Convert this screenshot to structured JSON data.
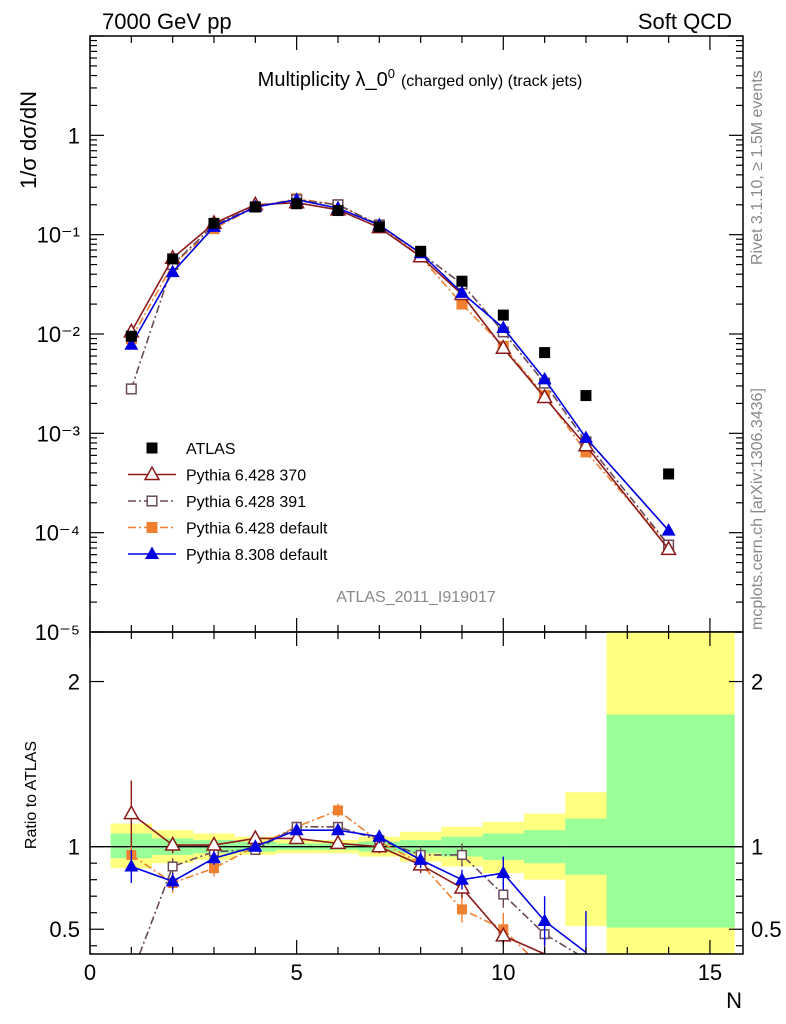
{
  "header": {
    "left": "7000 GeV pp",
    "right": "Soft QCD"
  },
  "side_labels": {
    "top": "Rivet 3.1.10, ≥ 1.5M events",
    "bottom": "mcplots.cern.ch [arXiv:1306.3436]"
  },
  "chart_data": [
    {
      "type": "line",
      "panel": "main",
      "title": "Multiplicity λ_0",
      "title_sup": "0",
      "title_suffix": "(charged only) (track jets)",
      "ylabel": "1/σ dσ/dN",
      "xlabel": "N",
      "watermark": "ATLAS_2011_I919017",
      "yscale": "log",
      "xlim": [
        0,
        15.8
      ],
      "ylim": [
        1e-05,
        10
      ],
      "y_ticks": [
        {
          "label": "1",
          "value": 1
        },
        {
          "label": "10⁻¹",
          "value": 0.1
        },
        {
          "label": "10⁻²",
          "value": 0.01
        },
        {
          "label": "10⁻³",
          "value": 0.001
        },
        {
          "label": "10⁻⁴",
          "value": 0.0001
        },
        {
          "label": "10⁻⁵",
          "value": 1e-05
        }
      ],
      "legend": "left-middle",
      "series": [
        {
          "name": "ATLAS",
          "color": "#000000",
          "marker": "square",
          "line": "none",
          "x": [
            1,
            2,
            3,
            4,
            5,
            6,
            7,
            8,
            9,
            10,
            11,
            12,
            14
          ],
          "y": [
            0.0095,
            0.057,
            0.13,
            0.19,
            0.205,
            0.175,
            0.12,
            0.068,
            0.034,
            0.0155,
            0.0065,
            0.0024,
            0.00039
          ]
        },
        {
          "name": "Pythia 6.428 370",
          "color": "#8b1a1a",
          "marker": "triangle-open",
          "line": "solid",
          "x": [
            1,
            2,
            3,
            4,
            5,
            6,
            7,
            8,
            9,
            10,
            11,
            12,
            14
          ],
          "y": [
            0.0105,
            0.058,
            0.13,
            0.2,
            0.21,
            0.178,
            0.118,
            0.06,
            0.025,
            0.0072,
            0.0023,
            0.00075,
            6.8e-05
          ]
        },
        {
          "name": "Pythia 6.428 391",
          "color": "#6b4a5a",
          "marker": "square-open",
          "line": "dashdot",
          "x": [
            1,
            2,
            3,
            4,
            5,
            6,
            7,
            8,
            9,
            10,
            11,
            12,
            14
          ],
          "y": [
            0.0028,
            0.05,
            0.125,
            0.19,
            0.225,
            0.2,
            0.125,
            0.065,
            0.032,
            0.0105,
            0.0032,
            0.00082,
            7.5e-05
          ]
        },
        {
          "name": "Pythia 6.428 default",
          "color": "#f08030",
          "marker": "square",
          "line": "dashdot",
          "x": [
            1,
            2,
            3,
            4,
            5,
            6,
            7,
            8,
            9,
            10,
            11,
            12,
            14
          ],
          "y": [
            0.009,
            0.05,
            0.115,
            0.19,
            0.23,
            0.2,
            0.125,
            0.06,
            0.02,
            0.0075,
            0.0024,
            0.00065,
            7.5e-05
          ]
        },
        {
          "name": "Pythia 8.308 default",
          "color": "#0000e0",
          "marker": "triangle",
          "line": "solid",
          "x": [
            1,
            2,
            3,
            4,
            5,
            6,
            7,
            8,
            9,
            10,
            11,
            12,
            14
          ],
          "y": [
            0.0078,
            0.042,
            0.12,
            0.19,
            0.225,
            0.185,
            0.125,
            0.065,
            0.026,
            0.0115,
            0.0035,
            0.0009,
            0.000105
          ]
        }
      ]
    },
    {
      "type": "line",
      "panel": "ratio",
      "ylabel": "Ratio to ATLAS",
      "xlabel": "N",
      "xlim": [
        0,
        15.8
      ],
      "ylim": [
        0.35,
        2.3
      ],
      "x_ticks": [
        0,
        5,
        10,
        15
      ],
      "y_ticks": [
        0.5,
        1,
        2
      ],
      "bands": [
        {
          "x0": 0.5,
          "x1": 1.5,
          "g_lo": 0.93,
          "g_hi": 1.08,
          "y_lo": 0.87,
          "y_hi": 1.14
        },
        {
          "x0": 1.5,
          "x1": 2.5,
          "g_lo": 0.95,
          "g_hi": 1.05,
          "y_lo": 0.9,
          "y_hi": 1.1
        },
        {
          "x0": 2.5,
          "x1": 3.5,
          "g_lo": 0.96,
          "g_hi": 1.04,
          "y_lo": 0.92,
          "y_hi": 1.08
        },
        {
          "x0": 3.5,
          "x1": 4.5,
          "g_lo": 0.97,
          "g_hi": 1.03,
          "y_lo": 0.95,
          "y_hi": 1.06
        },
        {
          "x0": 4.5,
          "x1": 5.5,
          "g_lo": 0.98,
          "g_hi": 1.02,
          "y_lo": 0.96,
          "y_hi": 1.04
        },
        {
          "x0": 5.5,
          "x1": 6.5,
          "g_lo": 0.98,
          "g_hi": 1.02,
          "y_lo": 0.96,
          "y_hi": 1.04
        },
        {
          "x0": 6.5,
          "x1": 7.5,
          "g_lo": 0.97,
          "g_hi": 1.03,
          "y_lo": 0.94,
          "y_hi": 1.06
        },
        {
          "x0": 7.5,
          "x1": 8.5,
          "g_lo": 0.96,
          "g_hi": 1.04,
          "y_lo": 0.91,
          "y_hi": 1.09
        },
        {
          "x0": 8.5,
          "x1": 9.5,
          "g_lo": 0.94,
          "g_hi": 1.06,
          "y_lo": 0.88,
          "y_hi": 1.12
        },
        {
          "x0": 9.5,
          "x1": 10.5,
          "g_lo": 0.92,
          "g_hi": 1.08,
          "y_lo": 0.84,
          "y_hi": 1.15
        },
        {
          "x0": 10.5,
          "x1": 11.5,
          "g_lo": 0.9,
          "g_hi": 1.1,
          "y_lo": 0.8,
          "y_hi": 1.2
        },
        {
          "x0": 11.5,
          "x1": 12.5,
          "g_lo": 0.83,
          "g_hi": 1.17,
          "y_lo": 0.52,
          "y_hi": 1.33
        },
        {
          "x0": 12.5,
          "x1": 15.8,
          "g_lo": 0.51,
          "g_hi": 1.8,
          "y_lo": 0.35,
          "y_hi": 2.3
        }
      ],
      "series": [
        {
          "name": "Pythia 6.428 370",
          "color": "#8b1a1a",
          "marker": "triangle-open",
          "line": "solid",
          "x": [
            1,
            2,
            3,
            4,
            5,
            6,
            7,
            8,
            9,
            10,
            11
          ],
          "y": [
            1.2,
            1.01,
            1.01,
            1.05,
            1.05,
            1.02,
            1.0,
            0.89,
            0.75,
            0.46,
            0.35
          ],
          "err": [
            0.2,
            0.05,
            0.04,
            0.03,
            0.03,
            0.03,
            0.04,
            0.05,
            0.06,
            0.05,
            0.03
          ]
        },
        {
          "name": "Pythia 6.428 391",
          "color": "#6b4a5a",
          "marker": "square-open",
          "line": "dashdot",
          "x": [
            1.2,
            2,
            3,
            4,
            5,
            6,
            7,
            8,
            9,
            10,
            11,
            11.8
          ],
          "y": [
            0.35,
            0.88,
            0.97,
            0.98,
            1.12,
            1.12,
            1.04,
            0.95,
            0.95,
            0.71,
            0.47,
            0.35
          ],
          "err": [
            0,
            0.05,
            0.04,
            0.03,
            0.03,
            0.03,
            0.04,
            0.05,
            0.07,
            0.08,
            0.08,
            0
          ]
        },
        {
          "name": "Pythia 6.428 default",
          "color": "#f08030",
          "marker": "square",
          "line": "dashdot",
          "x": [
            1,
            2,
            3,
            4,
            5,
            6,
            7,
            8,
            9,
            10,
            10.6
          ],
          "y": [
            0.95,
            0.78,
            0.87,
            1.0,
            1.12,
            1.22,
            1.03,
            0.9,
            0.62,
            0.5,
            0.35
          ],
          "err": [
            0.1,
            0.06,
            0.05,
            0.03,
            0.03,
            0.04,
            0.04,
            0.05,
            0.08,
            0.1,
            0
          ]
        },
        {
          "name": "Pythia 8.308 default",
          "color": "#0000e0",
          "marker": "triangle",
          "line": "solid",
          "x": [
            1,
            2,
            3,
            4,
            5,
            6,
            7,
            8,
            9,
            10,
            11,
            12
          ],
          "y": [
            0.88,
            0.79,
            0.93,
            1.0,
            1.1,
            1.1,
            1.06,
            0.92,
            0.8,
            0.84,
            0.55,
            0.36
          ],
          "err": [
            0.1,
            0.05,
            0.04,
            0.03,
            0.03,
            0.03,
            0.04,
            0.05,
            0.06,
            0.1,
            0.15,
            0.25
          ]
        }
      ]
    }
  ]
}
